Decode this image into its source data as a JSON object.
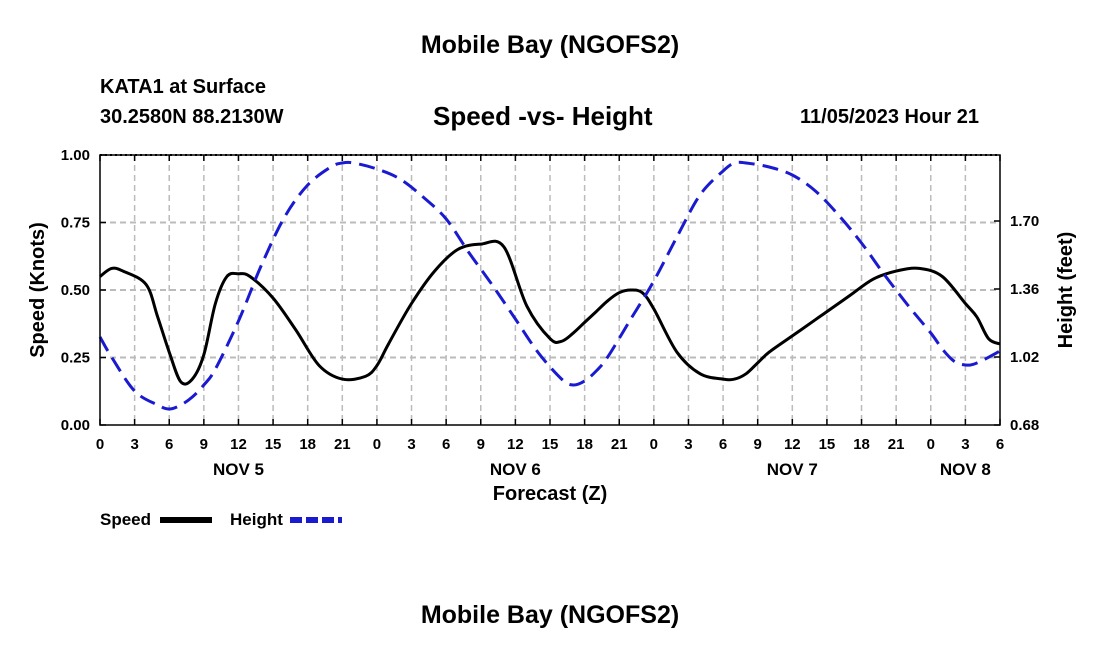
{
  "page_title": "Mobile Bay (NGOFS2)",
  "station": "KATA1 at Surface",
  "coords": "30.2580N  88.2130W",
  "subtitle": "Speed -vs- Height",
  "datetime": "11/05/2023 Hour 21",
  "footer_title": "Mobile Bay (NGOFS2)",
  "colors": {
    "speed": "#000000",
    "height": "#1a1ad0",
    "grid": "#bbbbbb"
  },
  "chart_data": {
    "type": "line",
    "title": "Speed -vs- Height",
    "xlabel": "Forecast (Z)",
    "ylabel": "Speed (Knots)",
    "y2label": "Height (feet)",
    "grid": true,
    "x_unit": "hours from NOV 5 00Z",
    "xlim": [
      0,
      78
    ],
    "ylim": [
      0,
      1
    ],
    "y2lim": [
      0.68,
      2.03
    ],
    "x_ticks": [
      0,
      3,
      6,
      9,
      12,
      15,
      18,
      21,
      24,
      27,
      30,
      33,
      36,
      39,
      42,
      45,
      48,
      51,
      54,
      57,
      60,
      63,
      66,
      69,
      72,
      75,
      78
    ],
    "x_tick_labels": [
      "0",
      "3",
      "6",
      "9",
      "12",
      "15",
      "18",
      "21",
      "0",
      "3",
      "6",
      "9",
      "12",
      "15",
      "18",
      "21",
      "0",
      "3",
      "6",
      "9",
      "12",
      "15",
      "18",
      "21",
      "0",
      "3",
      "6"
    ],
    "day_labels": [
      {
        "text": "NOV 5",
        "x": 12
      },
      {
        "text": "NOV 6",
        "x": 36
      },
      {
        "text": "NOV 7",
        "x": 60
      },
      {
        "text": "NOV 8",
        "x": 75
      }
    ],
    "y_ticks": [
      0,
      0.25,
      0.5,
      0.75,
      1.0
    ],
    "y_tick_labels": [
      "0.00",
      "0.25",
      "0.50",
      "0.75",
      "1.00"
    ],
    "y2_ticks": [
      0.68,
      1.02,
      1.36,
      1.7
    ],
    "y2_tick_labels": [
      "0.68",
      "1.02",
      "1.36",
      "1.70"
    ],
    "series": [
      {
        "name": "Speed",
        "axis": "left",
        "style": "solid",
        "x": [
          0,
          1,
          2,
          4,
          5,
          6,
          7,
          8,
          9,
          10,
          11,
          12,
          13,
          15,
          17,
          19,
          21,
          23,
          24,
          25,
          27,
          29,
          31,
          33,
          35,
          37,
          39,
          40,
          41,
          42,
          43,
          44,
          45,
          46,
          47,
          48,
          50,
          52,
          54,
          55,
          56,
          57,
          58,
          60,
          62,
          63,
          65,
          67,
          69,
          71,
          73,
          75,
          76,
          77,
          78
        ],
        "values": [
          0.55,
          0.58,
          0.57,
          0.52,
          0.4,
          0.27,
          0.16,
          0.17,
          0.26,
          0.45,
          0.55,
          0.56,
          0.55,
          0.47,
          0.35,
          0.22,
          0.17,
          0.18,
          0.22,
          0.3,
          0.45,
          0.57,
          0.65,
          0.67,
          0.66,
          0.44,
          0.32,
          0.31,
          0.34,
          0.38,
          0.42,
          0.46,
          0.49,
          0.5,
          0.49,
          0.43,
          0.27,
          0.19,
          0.17,
          0.17,
          0.19,
          0.23,
          0.27,
          0.33,
          0.39,
          0.42,
          0.48,
          0.54,
          0.57,
          0.58,
          0.55,
          0.45,
          0.4,
          0.32,
          0.3
        ]
      },
      {
        "name": "Height",
        "axis": "right",
        "style": "dashed",
        "x": [
          0,
          1,
          3,
          5,
          6,
          7,
          8,
          9,
          10,
          12,
          14,
          16,
          18,
          20,
          21,
          22,
          24,
          26,
          28,
          30,
          32,
          34,
          36,
          38,
          40,
          41,
          42,
          43,
          44,
          46,
          48,
          50,
          52,
          54,
          55,
          56,
          58,
          60,
          62,
          64,
          66,
          68,
          70,
          72,
          73,
          74,
          75,
          76,
          78
        ],
        "values": [
          1.12,
          1.02,
          0.85,
          0.78,
          0.76,
          0.78,
          0.82,
          0.88,
          0.96,
          1.2,
          1.48,
          1.72,
          1.88,
          1.97,
          1.99,
          1.99,
          1.96,
          1.91,
          1.82,
          1.71,
          1.54,
          1.38,
          1.21,
          1.04,
          0.91,
          0.88,
          0.9,
          0.95,
          1.02,
          1.21,
          1.4,
          1.62,
          1.83,
          1.95,
          1.99,
          1.99,
          1.97,
          1.93,
          1.85,
          1.73,
          1.59,
          1.43,
          1.28,
          1.14,
          1.06,
          1.0,
          0.98,
          0.99,
          1.05
        ]
      }
    ],
    "legend": [
      {
        "label": "Speed",
        "series": "Speed"
      },
      {
        "label": "Height",
        "series": "Height"
      }
    ],
    "legend_position": "bottom-left"
  }
}
